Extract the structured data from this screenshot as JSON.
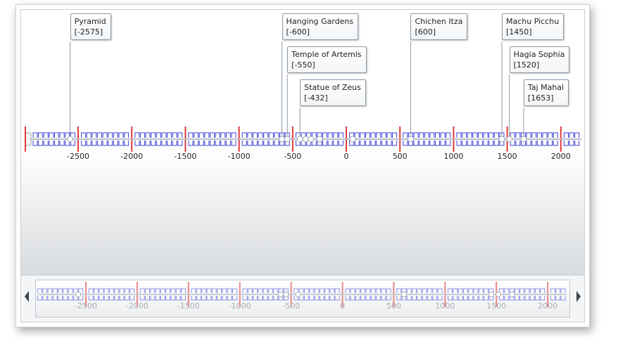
{
  "timeline": {
    "events": [
      {
        "name": "Pyramid",
        "year": -2575,
        "label": "[-2575]"
      },
      {
        "name": "Hanging Gardens",
        "year": -600,
        "label": "[-600]"
      },
      {
        "name": "Temple of Artemis",
        "year": -550,
        "label": "[-550]"
      },
      {
        "name": "Statue of Zeus",
        "year": -432,
        "label": "[-432]"
      },
      {
        "name": "Chichen Itza",
        "year": 600,
        "label": "[600]"
      },
      {
        "name": "Machu Picchu",
        "year": 1450,
        "label": "[1450]"
      },
      {
        "name": "Hagia Sophia",
        "year": 1520,
        "label": "[1520]"
      },
      {
        "name": "Taj Mahal",
        "year": 1653,
        "label": "[1653]"
      }
    ],
    "axis_labels": [
      "-2500",
      "-2000",
      "-1500",
      "-1000",
      "-500",
      "0",
      "500",
      "1000",
      "1500",
      "2000"
    ],
    "axis_values": [
      -2500,
      -2000,
      -1500,
      -1000,
      -500,
      0,
      500,
      1000,
      1500,
      2000
    ],
    "colors": {
      "major_tick": "#e03a3a",
      "minor_tick": "#3b3fd6",
      "navigator_label": "#a9adb2"
    }
  },
  "navigator": {
    "left_arrow": "triangle-left-icon",
    "right_arrow": "triangle-right-icon"
  }
}
